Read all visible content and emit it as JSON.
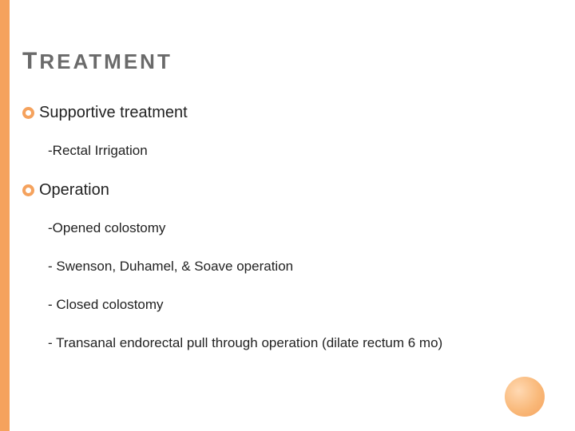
{
  "colors": {
    "accent": "#f5a25d",
    "title": "#6a6a6a",
    "text": "#222222",
    "background": "#ffffff"
  },
  "title_first": "T",
  "title_rest": "REATMENT",
  "bullets": [
    {
      "label": "Supportive treatment",
      "subs": [
        "-Rectal Irrigation"
      ]
    },
    {
      "label": "Operation",
      "subs": [
        "-Opened colostomy",
        "- Swenson, Duhamel, & Soave operation",
        "- Closed colostomy",
        "- Transanal endorectal pull through operation (dilate rectum 6 mo)"
      ]
    }
  ]
}
